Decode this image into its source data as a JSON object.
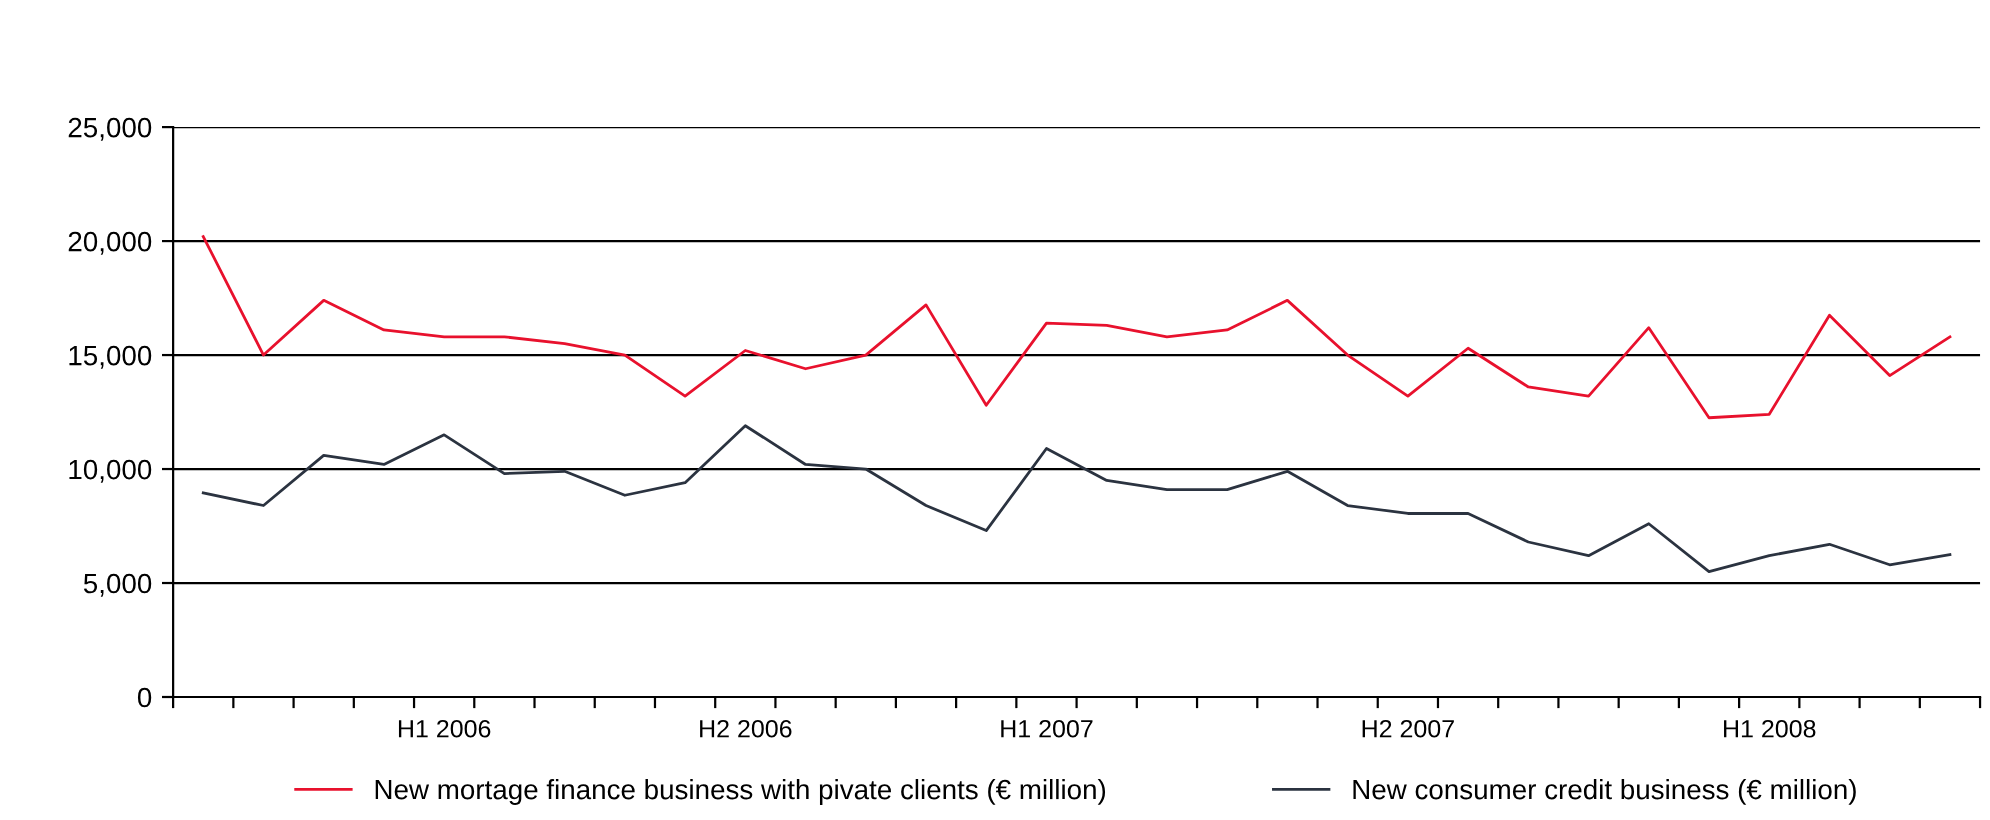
{
  "chart_data": {
    "type": "line",
    "categories": [
      null,
      null,
      null,
      null,
      "H1 2006",
      null,
      null,
      null,
      null,
      "H2 2006",
      null,
      null,
      null,
      null,
      "H1 2007",
      null,
      null,
      null,
      null,
      null,
      "H2 2007",
      null,
      null,
      null,
      null,
      null,
      "H1 2008",
      null,
      null,
      null
    ],
    "series": [
      {
        "name": "New mortage finance business with pivate clients (€ million)",
        "color": "#e8112d",
        "values": [
          20200,
          15000,
          17400,
          16100,
          15800,
          15800,
          15500,
          15000,
          13200,
          15200,
          14400,
          15000,
          17200,
          12800,
          16400,
          16300,
          15800,
          16100,
          17400,
          15000,
          13200,
          15300,
          13600,
          13200,
          16200,
          12250,
          12400,
          16750,
          14100,
          15800
        ]
      },
      {
        "name": "New consumer credit business (€ million)",
        "color": "#2b3340",
        "values": [
          8950,
          8400,
          10600,
          10200,
          11500,
          9800,
          9900,
          8850,
          9400,
          11900,
          10200,
          10000,
          8400,
          7300,
          10900,
          9500,
          9100,
          9100,
          9900,
          8400,
          8050,
          8050,
          6800,
          6200,
          7600,
          5500,
          6200,
          6700,
          5800,
          6250
        ]
      }
    ],
    "ylim": [
      0,
      25000
    ],
    "yticks": [
      {
        "value": 0,
        "label": "0"
      },
      {
        "value": 5000,
        "label": "5,000"
      },
      {
        "value": 10000,
        "label": "10,000"
      },
      {
        "value": 15000,
        "label": "15,000"
      },
      {
        "value": 20000,
        "label": "20,000"
      },
      {
        "value": 25000,
        "label": "25,000"
      }
    ],
    "grid": "y",
    "legend": "bottom",
    "marker": "none",
    "line_style": "solid"
  }
}
